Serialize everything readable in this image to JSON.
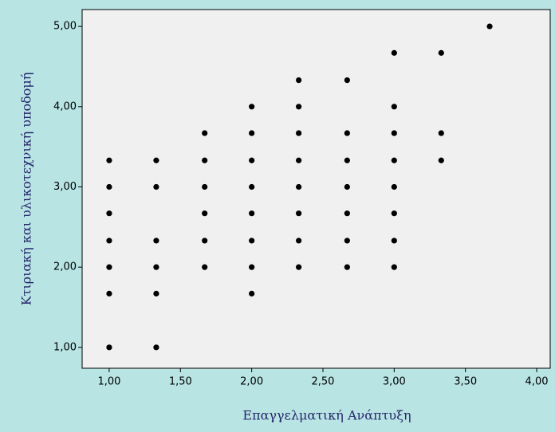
{
  "chart_data": {
    "type": "scatter",
    "x_label": "Επαγγελματική Ανάπτυξη",
    "y_label": "Κτιριακή και υλικοτεχνική υποδομή",
    "x": [
      1.0,
      1.0,
      1.0,
      1.0,
      1.0,
      1.0,
      1.0,
      1.33,
      1.33,
      1.33,
      1.33,
      1.33,
      1.33,
      1.67,
      1.67,
      1.67,
      1.67,
      1.67,
      1.67,
      2.0,
      2.0,
      2.0,
      2.0,
      2.0,
      2.0,
      2.0,
      2.0,
      2.33,
      2.33,
      2.33,
      2.33,
      2.33,
      2.33,
      2.33,
      2.33,
      2.67,
      2.67,
      2.67,
      2.67,
      2.67,
      2.67,
      2.67,
      3.0,
      3.0,
      3.0,
      3.0,
      3.0,
      3.0,
      3.0,
      3.0,
      3.33,
      3.33,
      3.33,
      3.67
    ],
    "y": [
      3.33,
      3.0,
      2.67,
      2.33,
      2.0,
      1.67,
      1.0,
      3.33,
      3.0,
      2.33,
      2.0,
      1.67,
      1.0,
      3.67,
      3.33,
      3.0,
      2.67,
      2.33,
      2.0,
      4.0,
      3.67,
      3.33,
      3.0,
      2.67,
      2.33,
      2.0,
      1.67,
      4.33,
      4.0,
      3.67,
      3.33,
      3.0,
      2.67,
      2.33,
      2.0,
      4.33,
      3.67,
      3.33,
      3.0,
      2.67,
      2.33,
      2.0,
      4.67,
      4.0,
      3.67,
      3.33,
      3.0,
      2.67,
      2.33,
      2.0,
      4.67,
      3.67,
      3.33,
      5.0
    ],
    "color": "#000000",
    "xlim": [
      0.81,
      4.095
    ],
    "ylim": [
      0.74,
      5.21
    ],
    "xticks": [
      {
        "value": 1,
        "label": "1,00"
      },
      {
        "value": 1.5,
        "label": "1,50"
      },
      {
        "value": 2,
        "label": "2,00"
      },
      {
        "value": 2.5,
        "label": "2,50"
      },
      {
        "value": 3,
        "label": "3,00"
      },
      {
        "value": 3.5,
        "label": "3,50"
      },
      {
        "value": 4,
        "label": "4,00"
      }
    ],
    "yticks": [
      {
        "value": 1,
        "label": "1,00"
      },
      {
        "value": 2,
        "label": "2,00"
      },
      {
        "value": 3,
        "label": "3,00"
      },
      {
        "value": 4,
        "label": "4,00"
      },
      {
        "value": 5,
        "label": "5,00"
      }
    ]
  }
}
